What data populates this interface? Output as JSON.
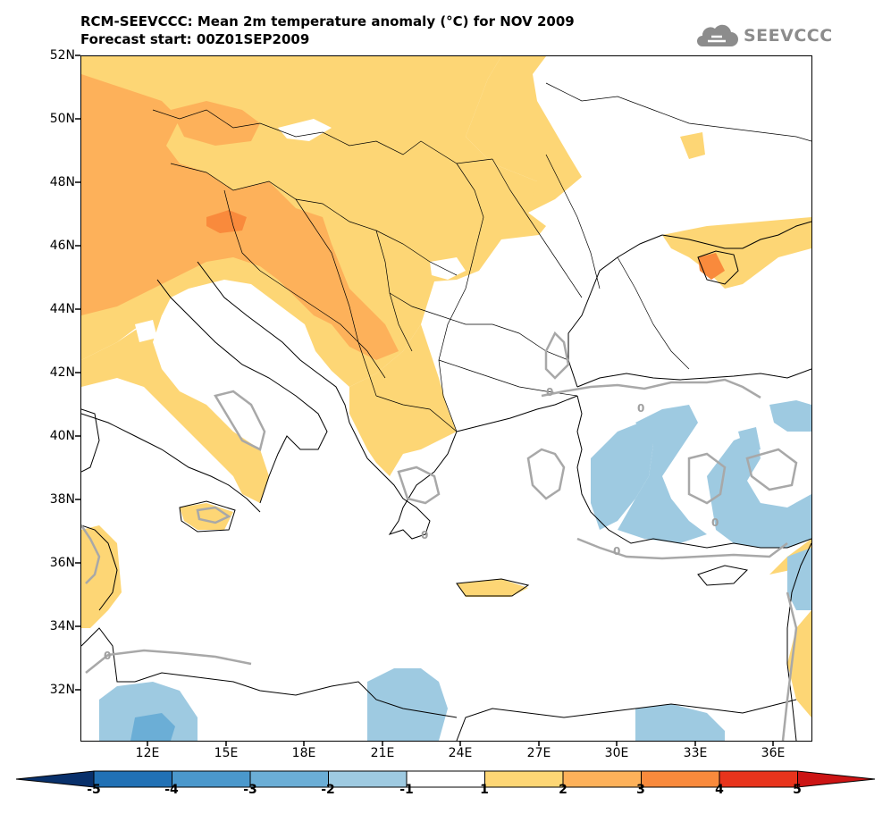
{
  "header": {
    "title_line1": "RCM-SEEVCCC: Mean 2m temperature anomaly (°C) for NOV 2009",
    "title_line2": "Forecast start: 00Z01SEP2009"
  },
  "logo": {
    "text": "SEEVCCC",
    "icon": "cloud-icon"
  },
  "map": {
    "lat_labels": [
      "52N",
      "50N",
      "48N",
      "46N",
      "44N",
      "42N",
      "40N",
      "38N",
      "36N",
      "34N",
      "32N"
    ],
    "lon_labels": [
      "12E",
      "15E",
      "18E",
      "21E",
      "24E",
      "27E",
      "30E",
      "33E",
      "36E"
    ],
    "contour_labels": [
      "0",
      "0",
      "0",
      "0",
      "0",
      "0"
    ]
  },
  "legend": {
    "levels": [
      "-5",
      "-4",
      "-3",
      "-2",
      "-1",
      "1",
      "2",
      "3",
      "4",
      "5"
    ],
    "colors": [
      "#08306b",
      "#2171b5",
      "#4b98cc",
      "#6baed6",
      "#9ecae1",
      "#ffffff",
      "#fdd675",
      "#fdb15a",
      "#f98a3c",
      "#e8341c",
      "#cc1414"
    ]
  }
}
